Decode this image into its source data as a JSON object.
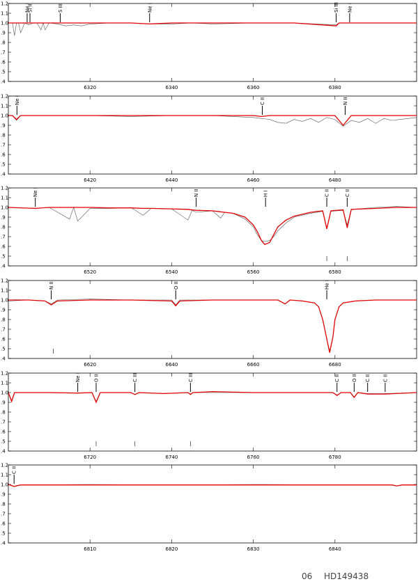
{
  "chart_data": [
    {
      "type": "line",
      "xlim": [
        6300,
        6400
      ],
      "ylim": [
        0.4,
        1.2
      ],
      "xticks": [
        6320,
        6340,
        6360,
        6380
      ],
      "yticks": [
        {
          "value": 0.4,
          "label": ".4"
        },
        {
          "value": 0.5,
          "label": ".5"
        },
        {
          "value": 0.6,
          "label": ".6"
        },
        {
          "value": 0.7,
          "label": ".7"
        },
        {
          "value": 0.8,
          "label": ".8"
        },
        {
          "value": 0.9,
          "label": ".9"
        },
        {
          "value": 1.0,
          "label": "1.0"
        },
        1.1,
        1.2
      ],
      "x": [
        6300,
        6301,
        6301.5,
        6302,
        6302.5,
        6303,
        6304,
        6305,
        6306,
        6307,
        6308,
        6308.5,
        6309,
        6310,
        6312,
        6314,
        6316,
        6318,
        6320,
        6325,
        6330,
        6334.6,
        6340,
        6345,
        6350,
        6360,
        6370,
        6380.3,
        6381,
        6390,
        6400
      ],
      "series": [
        {
          "color": "#555555",
          "values": [
            1.0,
            1.0,
            0.87,
            1.0,
            1.0,
            0.9,
            1.0,
            0.98,
            1.0,
            1.0,
            0.93,
            1.0,
            0.93,
            1.0,
            0.99,
            0.97,
            0.98,
            0.97,
            0.99,
            1.0,
            1.0,
            0.99,
            0.99,
            1.0,
            0.99,
            1.0,
            1.0,
            0.98,
            1.0,
            1.0,
            1.0
          ]
        },
        {
          "color": "#e00000",
          "values": [
            1.0,
            1.0,
            1.0,
            1.0,
            1.0,
            1.0,
            1.0,
            1.0,
            1.0,
            1.0,
            1.0,
            1.0,
            1.0,
            1.0,
            1.0,
            1.0,
            1.0,
            1.0,
            1.0,
            1.0,
            1.0,
            0.99,
            1.0,
            1.0,
            1.0,
            1.0,
            1.0,
            0.97,
            1.0,
            1.0,
            1.0
          ]
        }
      ],
      "annotations": [
        {
          "text": "Ne I",
          "x": 6304.6
        },
        {
          "text": "Si II",
          "x": 6305.3
        },
        {
          "text": "S III",
          "x": 6312.7
        },
        {
          "text": "Ne I",
          "x": 6334.6
        },
        {
          "text": "Si III",
          "x": 6380.3
        },
        {
          "text": "Ne I",
          "x": 6383.6
        }
      ],
      "lower_marks": []
    },
    {
      "type": "line",
      "xlim": [
        6400,
        6500
      ],
      "ylim": [
        0.4,
        1.2
      ],
      "xticks": [
        6420,
        6440,
        6460,
        6480
      ],
      "yticks": [
        {
          "value": 0.4,
          "label": ".4"
        },
        {
          "value": 0.5,
          "label": ".5"
        },
        {
          "value": 0.6,
          "label": ".6"
        },
        {
          "value": 0.7,
          "label": ".7"
        },
        {
          "value": 0.8,
          "label": ".8"
        },
        {
          "value": 0.9,
          "label": ".9"
        },
        {
          "value": 1.0,
          "label": "1.0"
        },
        1.1,
        1.2
      ],
      "x": [
        6400,
        6401,
        6402,
        6403,
        6410,
        6420,
        6430,
        6440,
        6450,
        6455,
        6460,
        6462,
        6464,
        6466,
        6468,
        6470,
        6472,
        6474,
        6476,
        6478,
        6480,
        6482,
        6484,
        6486,
        6488,
        6490,
        6492,
        6494,
        6496,
        6498,
        6500
      ],
      "series": [
        {
          "color": "#555555",
          "values": [
            1.0,
            1.0,
            0.95,
            1.0,
            1.0,
            1.0,
            0.99,
            1.0,
            1.0,
            0.99,
            0.98,
            0.97,
            0.96,
            0.93,
            0.92,
            0.96,
            0.94,
            0.97,
            0.93,
            0.98,
            0.96,
            0.89,
            0.95,
            0.93,
            0.97,
            0.92,
            0.97,
            0.95,
            0.96,
            0.97,
            0.98
          ]
        },
        {
          "color": "#e00000",
          "values": [
            1.0,
            1.0,
            0.96,
            1.0,
            1.0,
            1.0,
            1.0,
            1.0,
            1.0,
            1.0,
            1.0,
            0.99,
            1.0,
            1.0,
            1.0,
            1.0,
            1.0,
            1.0,
            1.0,
            1.0,
            1.0,
            0.9,
            1.0,
            1.0,
            1.0,
            1.0,
            1.0,
            1.0,
            1.0,
            1.0,
            1.0
          ]
        }
      ],
      "annotations": [
        {
          "text": "Ne I",
          "x": 6402.1
        },
        {
          "text": "C II",
          "x": 6462.2
        },
        {
          "text": "N II",
          "x": 6482.5
        }
      ],
      "lower_marks": []
    },
    {
      "type": "line",
      "xlim": [
        6500,
        6600
      ],
      "ylim": [
        0.4,
        1.2
      ],
      "xticks": [
        6520,
        6540,
        6560,
        6580
      ],
      "yticks": [
        {
          "value": 0.4,
          "label": ".4"
        },
        {
          "value": 0.5,
          "label": ".5"
        },
        {
          "value": 0.6,
          "label": ".6"
        },
        {
          "value": 0.7,
          "label": ".7"
        },
        {
          "value": 0.8,
          "label": ".8"
        },
        {
          "value": 0.9,
          "label": ".9"
        },
        {
          "value": 1.0,
          "label": "1.0"
        },
        1.1,
        1.2
      ],
      "x": [
        6500,
        6506.6,
        6510,
        6515,
        6516,
        6517,
        6520,
        6525,
        6530,
        6533,
        6535,
        6540,
        6544,
        6545,
        6546,
        6550,
        6552,
        6553,
        6555,
        6558,
        6560,
        6561,
        6562,
        6562.8,
        6564,
        6565,
        6566,
        6568,
        6570,
        6574,
        6577,
        6578,
        6579,
        6582,
        6583,
        6584,
        6590,
        6595,
        6600
      ],
      "series": [
        {
          "color": "#555555",
          "values": [
            1.0,
            0.99,
            1.0,
            0.88,
            1.0,
            0.86,
            0.99,
            0.99,
            1.0,
            0.92,
            0.99,
            0.985,
            0.87,
            0.97,
            0.95,
            0.965,
            0.89,
            0.95,
            0.94,
            0.88,
            0.8,
            0.72,
            0.66,
            0.65,
            0.66,
            0.7,
            0.76,
            0.84,
            0.9,
            0.94,
            0.96,
            0.79,
            0.96,
            0.97,
            0.82,
            0.98,
            1.0,
            1.01,
            1.0
          ]
        },
        {
          "color": "#e00000",
          "values": [
            1.0,
            0.99,
            1.0,
            1.0,
            1.0,
            1.0,
            1.0,
            0.995,
            0.995,
            0.99,
            0.99,
            0.985,
            0.98,
            0.975,
            0.97,
            0.965,
            0.955,
            0.95,
            0.94,
            0.9,
            0.82,
            0.75,
            0.66,
            0.62,
            0.64,
            0.72,
            0.8,
            0.87,
            0.91,
            0.95,
            0.965,
            0.78,
            0.965,
            0.975,
            0.79,
            0.98,
            0.99,
            1.0,
            1.0
          ]
        }
      ],
      "annotations": [
        {
          "text": "Ne I",
          "x": 6506.6
        },
        {
          "text": "N II",
          "x": 6546
        },
        {
          "text": "H I",
          "x": 6563
        },
        {
          "text": "C II",
          "x": 6578
        },
        {
          "text": "C II",
          "x": 6583
        }
      ],
      "lower_marks": [
        6578,
        6583
      ]
    },
    {
      "type": "line",
      "xlim": [
        6600,
        6700
      ],
      "ylim": [
        0.4,
        1.2
      ],
      "xticks": [
        6620,
        6640,
        6660,
        6680
      ],
      "yticks": [
        {
          "value": 0.4,
          "label": ".4"
        },
        {
          "value": 0.5,
          "label": ".5"
        },
        {
          "value": 0.6,
          "label": ".6"
        },
        {
          "value": 0.7,
          "label": ".7"
        },
        {
          "value": 0.8,
          "label": ".8"
        },
        {
          "value": 0.9,
          "label": ".9"
        },
        {
          "value": 1.0,
          "label": "1.0"
        },
        1.1,
        1.2
      ],
      "x": [
        6600,
        6605,
        6609,
        6610.5,
        6612,
        6620,
        6630,
        6640,
        6641,
        6642,
        6650,
        6660,
        6666,
        6667.8,
        6669,
        6672,
        6675,
        6676,
        6677,
        6678,
        6678.7,
        6679.5,
        6680,
        6681,
        6682,
        6685,
        6690,
        6700
      ],
      "series": [
        {
          "color": "#555555",
          "values": [
            0.99,
            1.0,
            0.99,
            0.96,
            1.0,
            1.01,
            1.0,
            1.0,
            0.95,
            1.0,
            1.0,
            1.0,
            1.0,
            0.96,
            1.0,
            0.99,
            0.97,
            0.93,
            0.8,
            0.6,
            0.48,
            0.62,
            0.8,
            0.93,
            0.97,
            0.99,
            1.0,
            1.0
          ]
        },
        {
          "color": "#e00000",
          "values": [
            1.0,
            1.0,
            0.99,
            0.95,
            0.99,
            1.0,
            1.0,
            0.99,
            0.94,
            0.99,
            1.0,
            1.0,
            1.0,
            0.96,
            1.0,
            0.99,
            0.97,
            0.93,
            0.8,
            0.6,
            0.46,
            0.62,
            0.8,
            0.93,
            0.97,
            0.99,
            1.0,
            1.0
          ]
        }
      ],
      "annotations": [
        {
          "text": "N II",
          "x": 6610.5
        },
        {
          "text": "O II",
          "x": 6641
        },
        {
          "text": "He I",
          "x": 6678
        }
      ],
      "lower_marks": [
        6611
      ]
    },
    {
      "type": "line",
      "xlim": [
        6700,
        6800
      ],
      "ylim": [
        0.4,
        1.2
      ],
      "xticks": [
        6720,
        6740,
        6760,
        6780
      ],
      "yticks": [
        {
          "value": 0.4,
          "label": ".4"
        },
        {
          "value": 0.5,
          "label": ".5"
        },
        {
          "value": 0.6,
          "label": ".6"
        },
        {
          "value": 0.7,
          "label": ".7"
        },
        {
          "value": 0.8,
          "label": ".8"
        },
        {
          "value": 0.9,
          "label": ".9"
        },
        {
          "value": 1.0,
          "label": "1.0"
        },
        1.1,
        1.2
      ],
      "x": [
        6700,
        6700.8,
        6701.5,
        6702.5,
        6710,
        6717,
        6720.5,
        6721.5,
        6722.5,
        6730,
        6731,
        6732,
        6738,
        6744,
        6744.6,
        6745.2,
        6750,
        6760,
        6770,
        6779.5,
        6780.5,
        6781.5,
        6783.8,
        6784.7,
        6785.6,
        6788,
        6792.3,
        6800
      ],
      "series": [
        {
          "color": "#555555",
          "values": [
            1.0,
            0.92,
            1.0,
            1.0,
            1.0,
            0.995,
            1.0,
            0.91,
            1.0,
            1.0,
            0.98,
            1.0,
            0.99,
            1.0,
            0.985,
            1.0,
            1.0,
            1.0,
            1.0,
            1.0,
            0.975,
            1.0,
            1.0,
            0.955,
            1.0,
            0.99,
            0.99,
            1.0
          ]
        },
        {
          "color": "#e00000",
          "values": [
            1.0,
            0.91,
            1.0,
            1.0,
            1.0,
            0.995,
            1.0,
            0.9,
            1.0,
            1.0,
            0.98,
            1.0,
            0.99,
            1.0,
            0.98,
            1.0,
            1.01,
            1.0,
            1.0,
            1.0,
            0.97,
            1.0,
            1.0,
            0.95,
            1.0,
            0.985,
            0.985,
            1.0
          ]
        }
      ],
      "annotations": [
        {
          "text": "Ne I",
          "x": 6717
        },
        {
          "text": "O II",
          "x": 6721.5
        },
        {
          "text": "C III",
          "x": 6731
        },
        {
          "text": "C III",
          "x": 6744.6
        },
        {
          "text": "C II",
          "x": 6780.5
        },
        {
          "text": "O II",
          "x": 6784.7
        },
        {
          "text": "C II",
          "x": 6788
        },
        {
          "text": "C II",
          "x": 6792.3
        }
      ],
      "lower_marks": [
        6721.5,
        6731,
        6744.6
      ]
    },
    {
      "type": "line",
      "xlim": [
        6800,
        6850
      ],
      "ylim": [
        0.4,
        1.2
      ],
      "xticks": [
        6810,
        6820,
        6830,
        6840
      ],
      "yticks": [
        {
          "value": 0.4,
          "label": ".4"
        },
        {
          "value": 0.5,
          "label": ".5"
        },
        {
          "value": 0.6,
          "label": ".6"
        },
        {
          "value": 0.7,
          "label": ".7"
        },
        {
          "value": 0.8,
          "label": ".8"
        },
        {
          "value": 0.9,
          "label": ".9"
        },
        {
          "value": 1.0,
          "label": "1.0"
        },
        1.1,
        1.2
      ],
      "x": [
        6800,
        6800.7,
        6801.5,
        6810,
        6820,
        6830,
        6840,
        6847,
        6847.6,
        6848.2,
        6850
      ],
      "series": [
        {
          "color": "#555555",
          "values": [
            1.0,
            0.98,
            0.995,
            1.0,
            0.995,
            1.0,
            0.995,
            0.995,
            0.985,
            0.995,
            0.995
          ]
        },
        {
          "color": "#e00000",
          "values": [
            1.0,
            0.98,
            0.995,
            0.995,
            0.995,
            0.995,
            0.995,
            0.995,
            0.985,
            0.995,
            0.995
          ]
        }
      ],
      "annotations": [
        {
          "text": "C II",
          "x": 6800.7
        }
      ],
      "lower_marks": []
    }
  ],
  "footer": {
    "page": "06",
    "star": "HD149438"
  }
}
